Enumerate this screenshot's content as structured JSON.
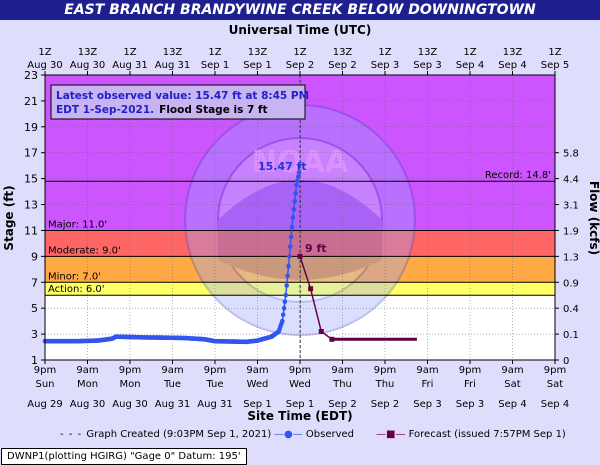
{
  "title": "EAST BRANCH BRANDYWINE CREEK BELOW DOWNINGTOWN",
  "chart_data": {
    "type": "line",
    "top_axis_title": "Universal Time (UTC)",
    "top_ticks": [
      {
        "time": "1Z",
        "date": "Aug 30"
      },
      {
        "time": "13Z",
        "date": "Aug 30"
      },
      {
        "time": "1Z",
        "date": "Aug 31"
      },
      {
        "time": "13Z",
        "date": "Aug 31"
      },
      {
        "time": "1Z",
        "date": "Sep 1"
      },
      {
        "time": "13Z",
        "date": "Sep 1"
      },
      {
        "time": "1Z",
        "date": "Sep 2"
      },
      {
        "time": "13Z",
        "date": "Sep 2"
      },
      {
        "time": "1Z",
        "date": "Sep 3"
      },
      {
        "time": "13Z",
        "date": "Sep 3"
      },
      {
        "time": "1Z",
        "date": "Sep 4"
      },
      {
        "time": "13Z",
        "date": "Sep 4"
      },
      {
        "time": "1Z",
        "date": "Sep 5"
      }
    ],
    "bottom_axis_title": "Site Time (EDT)",
    "bottom_ticks": [
      {
        "time": "9pm",
        "day": "Sun",
        "date": "Aug 29"
      },
      {
        "time": "9am",
        "day": "Mon",
        "date": "Aug 30"
      },
      {
        "time": "9pm",
        "day": "Mon",
        "date": "Aug 30"
      },
      {
        "time": "9am",
        "day": "Tue",
        "date": "Aug 31"
      },
      {
        "time": "9pm",
        "day": "Tue",
        "date": "Aug 31"
      },
      {
        "time": "9am",
        "day": "Wed",
        "date": "Sep 1"
      },
      {
        "time": "9pm",
        "day": "Wed",
        "date": "Sep 1"
      },
      {
        "time": "9am",
        "day": "Thu",
        "date": "Sep 2"
      },
      {
        "time": "9pm",
        "day": "Thu",
        "date": "Sep 2"
      },
      {
        "time": "9am",
        "day": "Fri",
        "date": "Sep 3"
      },
      {
        "time": "9pm",
        "day": "Fri",
        "date": "Sep 3"
      },
      {
        "time": "9am",
        "day": "Sat",
        "date": "Sep 4"
      },
      {
        "time": "9pm",
        "day": "Sat",
        "date": "Sep 4"
      }
    ],
    "x_range": [
      "2021-08-29T21:00",
      "2021-09-04T21:00"
    ],
    "ylabel": "Stage (ft)",
    "ylim": [
      1,
      23
    ],
    "y_ticks": [
      1,
      3,
      5,
      7,
      9,
      11,
      13,
      15,
      17,
      19,
      21,
      23
    ],
    "y2label": "Flow (kcfs)",
    "y2_ticks": [
      {
        "stage": 1,
        "label": "0"
      },
      {
        "stage": 3,
        "label": "0.1"
      },
      {
        "stage": 5,
        "label": "0.4"
      },
      {
        "stage": 7,
        "label": "0.9"
      },
      {
        "stage": 9,
        "label": "1.3"
      },
      {
        "stage": 11,
        "label": "1.9"
      },
      {
        "stage": 13,
        "label": "3.1"
      },
      {
        "stage": 15,
        "label": "4.4"
      },
      {
        "stage": 17,
        "label": "5.8"
      }
    ],
    "flood_categories": [
      {
        "name": "Action",
        "label": "Action: 6.0'",
        "stage": 6.0,
        "color": "#ffff66"
      },
      {
        "name": "Minor",
        "label": "Minor: 7.0'",
        "stage": 7.0,
        "color": "#ffaa44"
      },
      {
        "name": "Moderate",
        "label": "Moderate: 9.0'",
        "stage": 9.0,
        "color": "#ff6666"
      },
      {
        "name": "Major",
        "label": "Major: 11.0'",
        "stage": 11.0,
        "color": "#cc55ff"
      },
      {
        "name": "Record",
        "label": "Record: 14.8'",
        "stage": 14.8,
        "color": "#cc55ff"
      }
    ],
    "annotation_box": {
      "line1": "Latest observed value: 15.47 ft at 8:45 PM",
      "line2a": "EDT 1-Sep-2021.",
      "line2b": "Flood Stage is 7 ft"
    },
    "peak_label": "15.47 ft",
    "forecast_label": "9 ft",
    "series": [
      {
        "name": "Observed",
        "color": "#3355ee",
        "points": [
          [
            "2021-08-29T21:00",
            2.45
          ],
          [
            "2021-08-30T06:00",
            2.45
          ],
          [
            "2021-08-30T12:00",
            2.5
          ],
          [
            "2021-08-30T16:00",
            2.65
          ],
          [
            "2021-08-30T17:00",
            2.8
          ],
          [
            "2021-08-31T00:00",
            2.75
          ],
          [
            "2021-08-31T12:00",
            2.7
          ],
          [
            "2021-08-31T18:00",
            2.6
          ],
          [
            "2021-08-31T21:00",
            2.45
          ],
          [
            "2021-09-01T06:00",
            2.4
          ],
          [
            "2021-09-01T09:00",
            2.5
          ],
          [
            "2021-09-01T13:00",
            2.8
          ],
          [
            "2021-09-01T15:00",
            3.2
          ],
          [
            "2021-09-01T16:00",
            4.0
          ],
          [
            "2021-09-01T17:00",
            6.0
          ],
          [
            "2021-09-01T18:00",
            9.0
          ],
          [
            "2021-09-01T19:00",
            12.0
          ],
          [
            "2021-09-01T20:00",
            14.5
          ],
          [
            "2021-09-01T20:45",
            15.47
          ]
        ]
      },
      {
        "name": "Forecast (issued 7:57PM Sep 1)",
        "color": "#660044",
        "points": [
          [
            "2021-09-01T21:00",
            9.0
          ],
          [
            "2021-09-02T00:00",
            6.5
          ],
          [
            "2021-09-02T03:00",
            3.2
          ],
          [
            "2021-09-02T06:00",
            2.6
          ],
          [
            "2021-09-02T12:00",
            2.6
          ],
          [
            "2021-09-03T06:00",
            2.6
          ]
        ]
      }
    ],
    "graph_created": {
      "time": "2021-09-01T21:03",
      "label": "Graph Created (9:03PM Sep 1, 2021)"
    },
    "legend": {
      "graph_created": "Graph Created (9:03PM Sep 1, 2021)",
      "observed": "Observed",
      "forecast": "Forecast (issued 7:57PM Sep 1)"
    },
    "watermark": "NOAA"
  },
  "footer": "DWNP1(plotting HGIRG) \"Gage 0\" Datum: 195'"
}
